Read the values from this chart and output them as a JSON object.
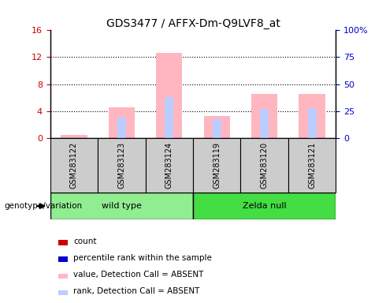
{
  "title": "GDS3477 / AFFX-Dm-Q9LVF8_at",
  "samples": [
    "GSM283122",
    "GSM283123",
    "GSM283124",
    "GSM283119",
    "GSM283120",
    "GSM283121"
  ],
  "pink_bars": [
    0.4,
    4.5,
    12.7,
    3.2,
    6.5,
    6.5
  ],
  "blue_bars": [
    0.0,
    3.0,
    6.1,
    2.8,
    4.3,
    4.4
  ],
  "ylim_left": [
    0,
    16
  ],
  "ylim_right": [
    0,
    100
  ],
  "yticks_left": [
    0,
    4,
    8,
    12,
    16
  ],
  "yticks_right": [
    0,
    25,
    50,
    75,
    100
  ],
  "yticklabels_right": [
    "0",
    "25",
    "50",
    "75",
    "100%"
  ],
  "left_tick_color": "#CC0000",
  "right_tick_color": "#0000CC",
  "grid_lines": [
    4,
    8,
    12
  ],
  "wild_type_color": "#90EE90",
  "zelda_null_color": "#44DD44",
  "sample_bg_color": "#CCCCCC",
  "legend_items": [
    {
      "label": "count",
      "color": "#CC0000"
    },
    {
      "label": "percentile rank within the sample",
      "color": "#0000CC"
    },
    {
      "label": "value, Detection Call = ABSENT",
      "color": "#FFB6C1"
    },
    {
      "label": "rank, Detection Call = ABSENT",
      "color": "#BBCCFF"
    }
  ],
  "genotype_label": "genotype/variation"
}
